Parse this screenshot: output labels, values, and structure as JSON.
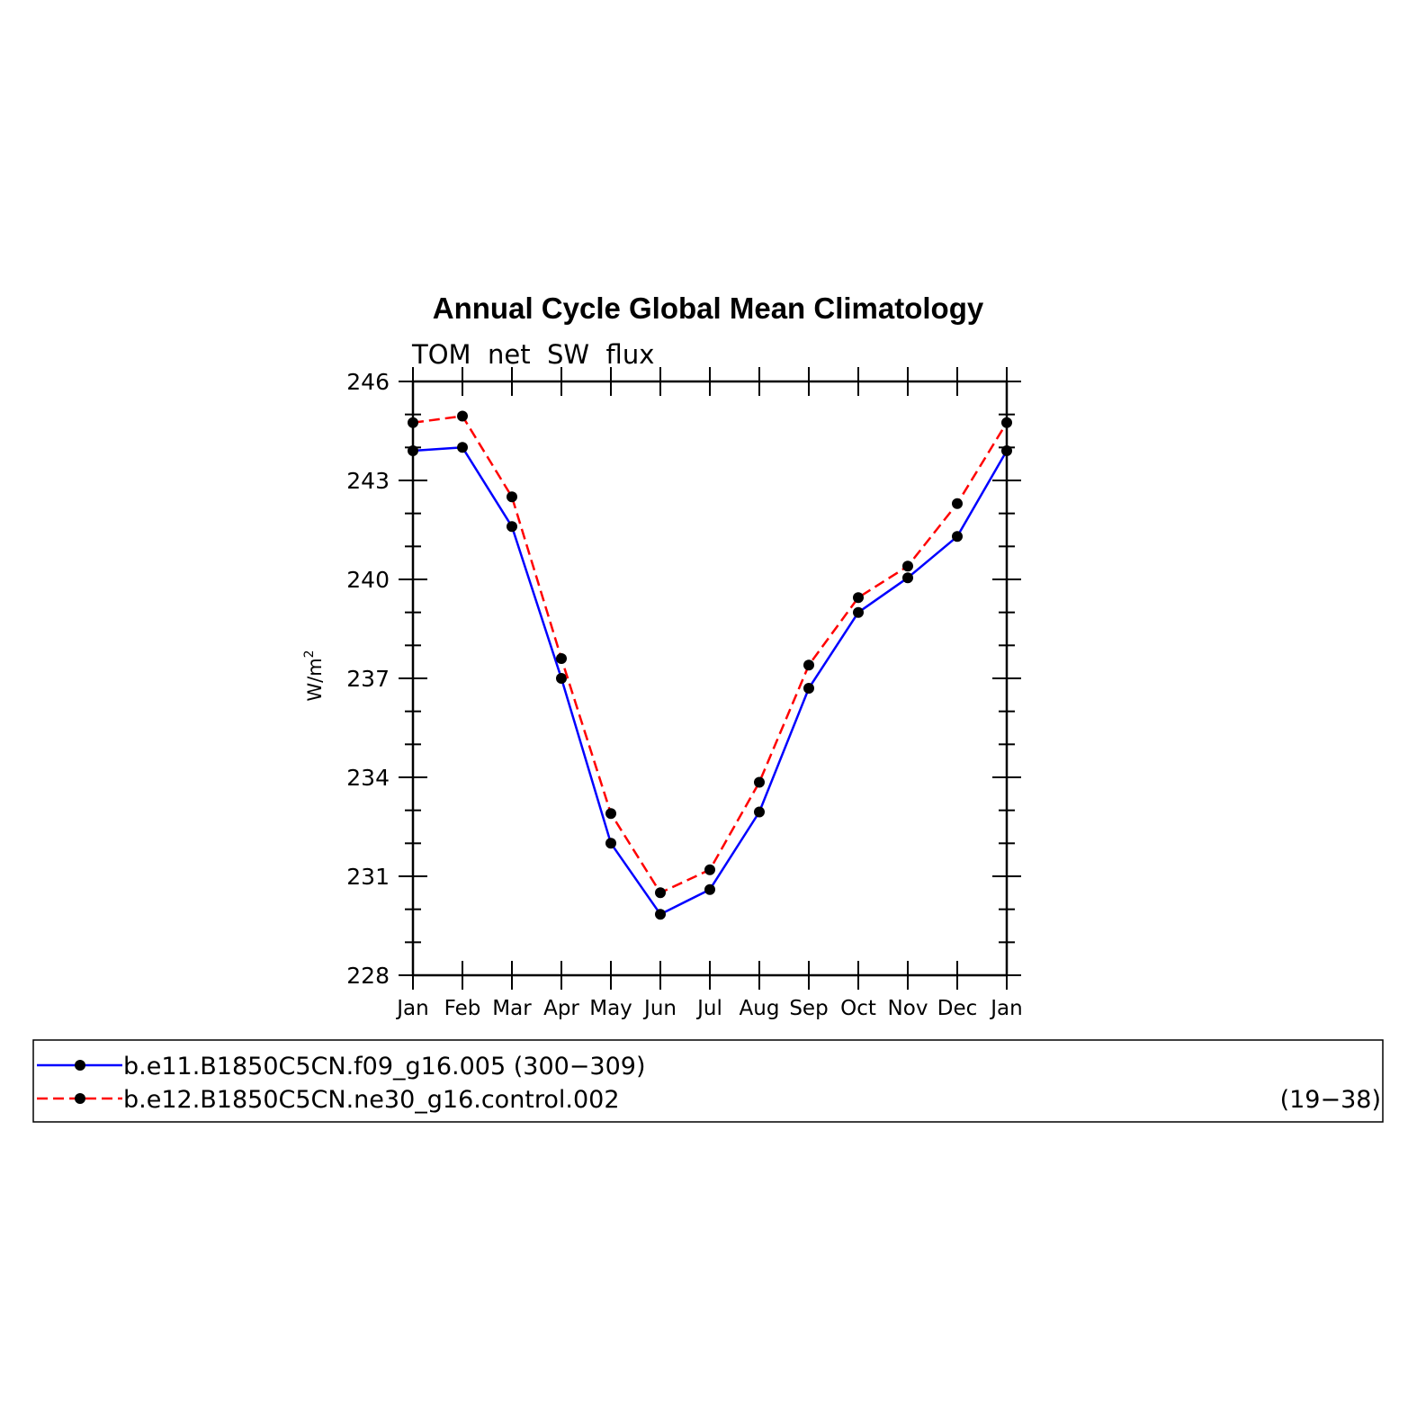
{
  "chart_data": {
    "type": "line",
    "title": "Annual Cycle Global Mean Climatology",
    "subtitle": "TOM  net  SW  flux",
    "ylabel": "W/m",
    "ylabel_superscript": "2",
    "xlabel": "",
    "categories": [
      "Jan",
      "Feb",
      "Mar",
      "Apr",
      "May",
      "Jun",
      "Jul",
      "Aug",
      "Sep",
      "Oct",
      "Nov",
      "Dec",
      "Jan"
    ],
    "ylim": [
      228,
      246
    ],
    "yticks": [
      228,
      231,
      234,
      237,
      240,
      243,
      246
    ],
    "grid": false,
    "legend_placement": "bottom",
    "series": [
      {
        "name": "b.e11.B1850C5CN.f09_g16.005 (300−309)",
        "color": "#0000ff",
        "dash": "solid",
        "values": [
          243.9,
          244.0,
          241.6,
          237.0,
          232.0,
          229.85,
          230.6,
          232.95,
          236.7,
          239.0,
          240.05,
          241.3,
          243.9
        ]
      },
      {
        "name": "b.e12.B1850C5CN.ne30_g16.control.002",
        "name_suffix": "(19−38)",
        "color": "#ff0000",
        "dash": "dashed",
        "values": [
          244.75,
          244.95,
          242.5,
          237.6,
          232.9,
          230.5,
          231.2,
          233.85,
          237.4,
          239.45,
          240.4,
          242.3,
          244.75
        ]
      }
    ]
  }
}
